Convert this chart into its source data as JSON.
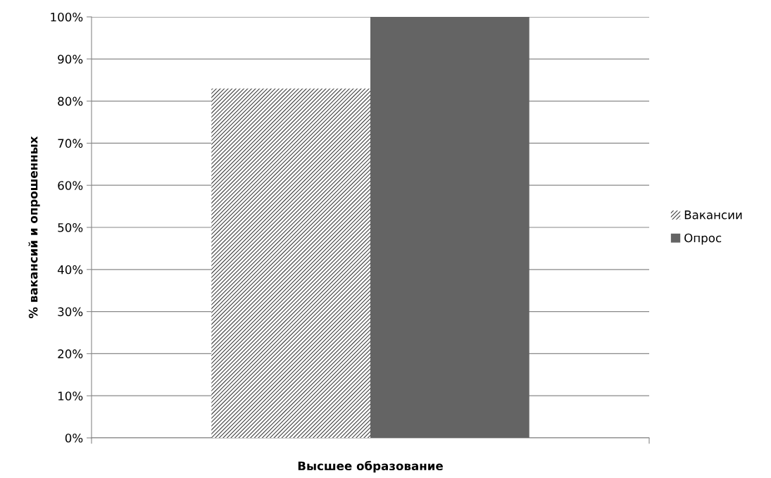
{
  "chart_data": {
    "type": "bar",
    "xlabel": "Высшее образование",
    "ylabel": "% вакансий и опрошенных",
    "categories": [
      null
    ],
    "series": [
      {
        "name": "Вакансии",
        "color": "#404040",
        "values": [
          83
        ]
      },
      {
        "name": "Опрос",
        "color": "#646464",
        "values": [
          100
        ]
      }
    ],
    "ylim": [
      0,
      100
    ],
    "yticks": [
      {
        "value": 0,
        "label": "0%"
      },
      {
        "value": 10,
        "label": "10%"
      },
      {
        "value": 20,
        "label": "20%"
      },
      {
        "value": 30,
        "label": "30%"
      },
      {
        "value": 40,
        "label": "40%"
      },
      {
        "value": 50,
        "label": "50%"
      },
      {
        "value": 60,
        "label": "60%"
      },
      {
        "value": 70,
        "label": "70%"
      },
      {
        "value": 80,
        "label": "80%"
      },
      {
        "value": 90,
        "label": "90%"
      },
      {
        "value": 100,
        "label": "100%"
      }
    ],
    "grid": "y",
    "legend": "right"
  }
}
